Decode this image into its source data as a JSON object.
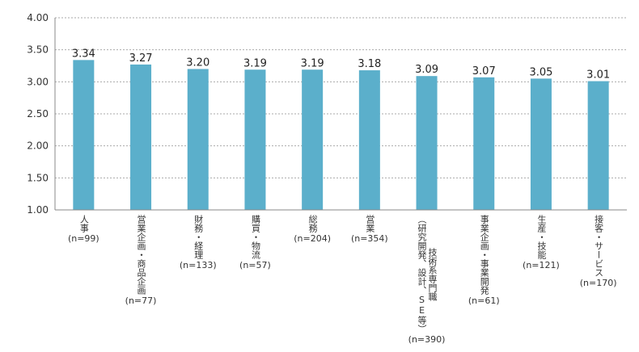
{
  "chart_data": {
    "type": "bar",
    "title": "",
    "xlabel": "",
    "ylabel": "",
    "ylim": [
      1.0,
      4.0
    ],
    "yticks": [
      "1.00",
      "1.50",
      "2.00",
      "2.50",
      "3.00",
      "3.50",
      "4.00"
    ],
    "grid": true,
    "bar_color": "#5bafcb",
    "categories": [
      {
        "lines": [
          "人",
          "事"
        ],
        "n": "(n=99)"
      },
      {
        "lines": [
          "営業企画・商品企画"
        ],
        "n": "(n=77)"
      },
      {
        "lines": [
          "財務・経理"
        ],
        "n": "(n=133)"
      },
      {
        "lines": [
          "購買・物流"
        ],
        "n": "(n=57)"
      },
      {
        "lines": [
          "総務"
        ],
        "n": "(n=204)"
      },
      {
        "lines": [
          "営業"
        ],
        "n": "(n=354)"
      },
      {
        "lines": [
          "技術系専門職",
          "（研究開発、設計、SE等）"
        ],
        "n": "(n=390)"
      },
      {
        "lines": [
          "事業企画・事業開発"
        ],
        "n": "(n=61)"
      },
      {
        "lines": [
          "生産・技能"
        ],
        "n": "(n=121)"
      },
      {
        "lines": [
          "接客・サービス"
        ],
        "n": "(n=170)"
      }
    ],
    "values": [
      3.34,
      3.27,
      3.2,
      3.19,
      3.19,
      3.18,
      3.09,
      3.07,
      3.05,
      3.01
    ],
    "value_labels": [
      "3.34",
      "3.27",
      "3.20",
      "3.19",
      "3.19",
      "3.18",
      "3.09",
      "3.07",
      "3.05",
      "3.01"
    ]
  }
}
